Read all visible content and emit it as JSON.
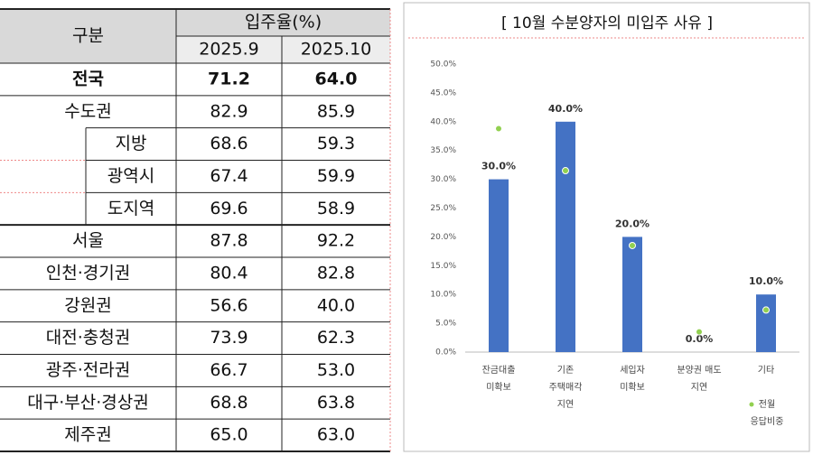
{
  "table": {
    "header": [
      "구분",
      "입주율(%)"
    ],
    "subheader": [
      "2025.9",
      "2025.10"
    ],
    "rows": [
      [
        "전국",
        "71.2",
        "64.0"
      ],
      [
        "수도권",
        "82.9",
        "85.9"
      ],
      [
        "지방",
        "68.6",
        "59.3"
      ],
      [
        "광역시",
        "67.4",
        "59.9"
      ],
      [
        "도지역",
        "69.6",
        "58.9"
      ],
      [
        "서울",
        "87.8",
        "92.2"
      ],
      [
        "인천·경기권",
        "80.4",
        "82.8"
      ],
      [
        "강원권",
        "56.6",
        "40.0"
      ],
      [
        "대전·충청권",
        "73.9",
        "62.3"
      ],
      [
        "광주·전라권",
        "66.7",
        "53.0"
      ],
      [
        "대구·부산·경상권",
        "68.8",
        "63.8"
      ],
      [
        "제주권",
        "65.0",
        "63.0"
      ]
    ]
  },
  "chart_data": {
    "type": "bar",
    "title": "[ 10월 수분양자의 미입주 사유 ]",
    "categories": [
      "잔금대출\n미확보",
      "기존\n주택매각\n지연",
      "세입자\n미확보",
      "분양권 매도\n지연",
      "기타"
    ],
    "series": [
      {
        "color": "#4472c4",
        "values": [
          30,
          40,
          20,
          0,
          10
        ],
        "value_labels": [
          "30.0%",
          "40.0%",
          "20.0%",
          "0.0%",
          "10.0%"
        ]
      },
      {
        "name": "전월\n응답비중",
        "type": "scatter",
        "color": "#92d050",
        "values": [
          38.8,
          31.5,
          18.5,
          3.5,
          7.3
        ]
      }
    ],
    "ylim": [
      0,
      50
    ],
    "yticks": [
      {
        "value": 0,
        "label": "0.0%"
      },
      {
        "value": 5,
        "label": "5.0%"
      },
      {
        "value": 10,
        "label": "10.0%"
      },
      {
        "value": 15,
        "label": "15.0%"
      },
      {
        "value": 20,
        "label": "20.0%"
      },
      {
        "value": 25,
        "label": "25.0%"
      },
      {
        "value": 30,
        "label": "30.0%"
      },
      {
        "value": 35,
        "label": "35.0%"
      },
      {
        "value": 40,
        "label": "40.0%"
      },
      {
        "value": 45,
        "label": "45.0%"
      },
      {
        "value": 50,
        "label": "50.0%"
      }
    ]
  }
}
